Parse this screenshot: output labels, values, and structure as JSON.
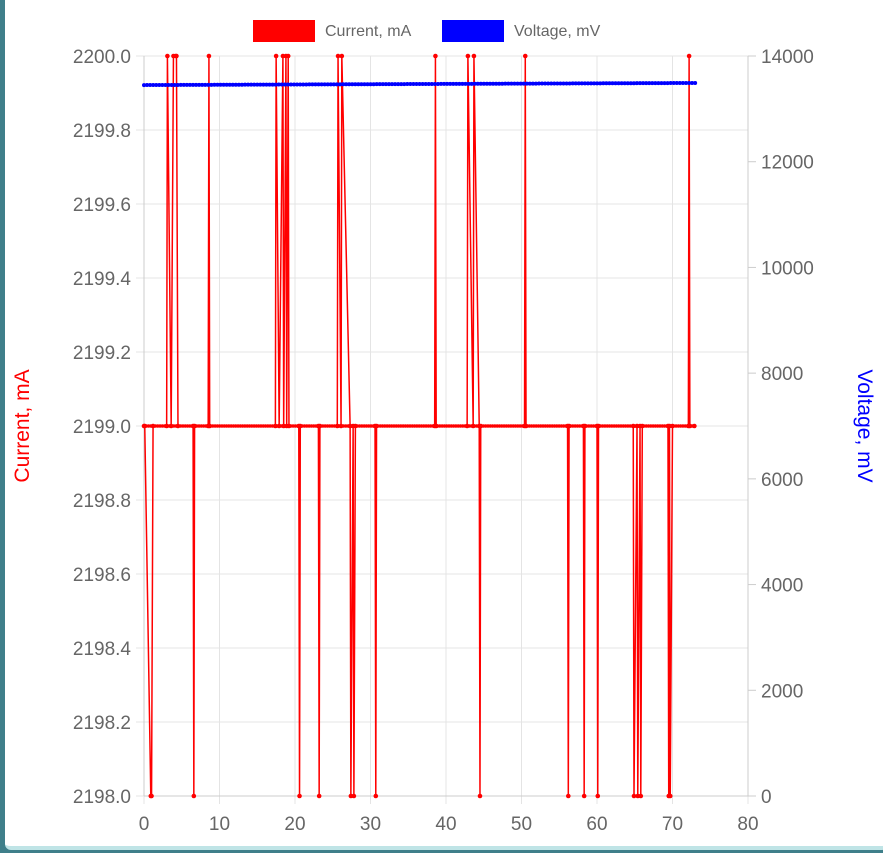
{
  "chart_data": {
    "type": "line",
    "legend_position": "top",
    "grid": true,
    "x_ticks": [
      "0",
      "10",
      "20",
      "30",
      "40",
      "50",
      "60",
      "70",
      "80"
    ],
    "xlim": [
      0,
      80
    ],
    "y_left": {
      "label": "Current, mA",
      "color": "#ff0000",
      "lim": [
        2198.0,
        2200.0
      ],
      "ticks": [
        "2198.0",
        "2198.2",
        "2198.4",
        "2198.6",
        "2198.8",
        "2199.0",
        "2199.2",
        "2199.4",
        "2199.6",
        "2199.8",
        "2200.0"
      ]
    },
    "y_right": {
      "label": "Voltage, mV",
      "color": "#0000ff",
      "lim": [
        0,
        14000
      ],
      "ticks": [
        "0",
        "2000",
        "4000",
        "6000",
        "8000",
        "10000",
        "12000",
        "14000"
      ]
    },
    "series": [
      {
        "name": "Current, mA",
        "axis": "left",
        "color": "#ff0000",
        "x": [
          0,
          0.1,
          0.9,
          1.0,
          1.2,
          3.0,
          3.1,
          3.6,
          3.9,
          4.2,
          4.3,
          4.5,
          6.5,
          6.6,
          6.7,
          8.5,
          8.6,
          8.7,
          17.4,
          17.5,
          17.9,
          18.4,
          18.5,
          18.8,
          18.9,
          19.1,
          19.2,
          20.5,
          20.6,
          20.7,
          23.1,
          23.2,
          23.3,
          25.6,
          25.7,
          26.1,
          26.2,
          27.3,
          27.4,
          27.7,
          27.8,
          28.0,
          30.6,
          30.7,
          30.8,
          38.5,
          38.6,
          38.7,
          42.8,
          42.9,
          43.6,
          43.7,
          44.4,
          44.5,
          44.6,
          50.4,
          50.5,
          50.6,
          56.1,
          56.2,
          56.3,
          58.2,
          58.3,
          58.4,
          60.0,
          60.1,
          60.2,
          64.8,
          64.9,
          65.3,
          65.4,
          65.7,
          65.8,
          66.0,
          69.4,
          69.5,
          69.6,
          69.7,
          70.0,
          72.1,
          72.2,
          72.3,
          72.9
        ],
        "values": [
          2199.0,
          2199.0,
          2198.0,
          2198.0,
          2199.0,
          2199.0,
          2200.0,
          2199.0,
          2200.0,
          2200.0,
          2200.0,
          2199.0,
          2199.0,
          2198.0,
          2199.0,
          2199.0,
          2200.0,
          2199.0,
          2199.0,
          2200.0,
          2199.0,
          2200.0,
          2199.0,
          2200.0,
          2199.0,
          2200.0,
          2199.0,
          2199.0,
          2198.0,
          2199.0,
          2199.0,
          2198.0,
          2199.0,
          2199.0,
          2200.0,
          2199.0,
          2200.0,
          2199.0,
          2198.0,
          2199.0,
          2198.0,
          2199.0,
          2199.0,
          2198.0,
          2199.0,
          2199.0,
          2200.0,
          2199.0,
          2199.0,
          2200.0,
          2199.0,
          2200.0,
          2199.0,
          2198.0,
          2199.0,
          2199.0,
          2200.0,
          2199.0,
          2199.0,
          2198.0,
          2199.0,
          2199.0,
          2198.0,
          2199.0,
          2199.0,
          2198.0,
          2199.0,
          2199.0,
          2198.0,
          2199.0,
          2198.0,
          2199.0,
          2198.0,
          2199.0,
          2199.0,
          2198.0,
          2199.0,
          2198.0,
          2199.0,
          2199.0,
          2200.0,
          2199.0,
          2199.0
        ]
      },
      {
        "name": "Voltage, mV",
        "axis": "right",
        "color": "#0000ff",
        "x": [
          0,
          73
        ],
        "values": [
          13450,
          13490
        ]
      }
    ]
  }
}
